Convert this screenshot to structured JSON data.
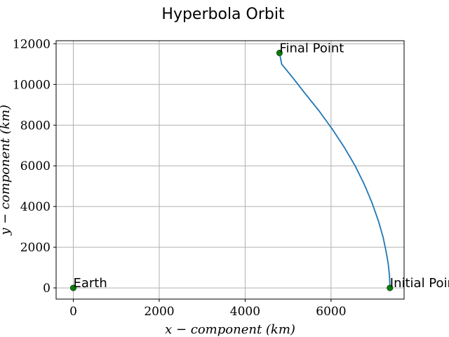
{
  "chart_data": {
    "type": "line",
    "title": "Hyperbola Orbit",
    "xlabel": "x − component (km)",
    "ylabel": "y − component (km)",
    "xlim": [
      -400,
      7700
    ],
    "ylim": [
      -550,
      12150
    ],
    "x_ticks": [
      0,
      2000,
      4000,
      6000
    ],
    "y_ticks": [
      0,
      2000,
      4000,
      6000,
      8000,
      10000,
      12000
    ],
    "grid": true,
    "series": [
      {
        "color": "#1f77b4",
        "points": [
          [
            7370,
            0
          ],
          [
            7360,
            600
          ],
          [
            7330,
            1200
          ],
          [
            7280,
            1800
          ],
          [
            7210,
            2500
          ],
          [
            7100,
            3300
          ],
          [
            6950,
            4200
          ],
          [
            6770,
            5100
          ],
          [
            6560,
            6000
          ],
          [
            6310,
            6900
          ],
          [
            6030,
            7800
          ],
          [
            5720,
            8700
          ],
          [
            5380,
            9600
          ],
          [
            5120,
            10300
          ],
          [
            4850,
            11000
          ],
          [
            4800,
            11550
          ]
        ]
      }
    ],
    "markers": [
      {
        "label": "Earth",
        "x": 0,
        "y": 0,
        "color": "#008000"
      },
      {
        "label": "Initial Point",
        "x": 7370,
        "y": 0,
        "color": "#008000"
      },
      {
        "label": "Final Point",
        "x": 4800,
        "y": 11550,
        "color": "#008000"
      }
    ]
  }
}
